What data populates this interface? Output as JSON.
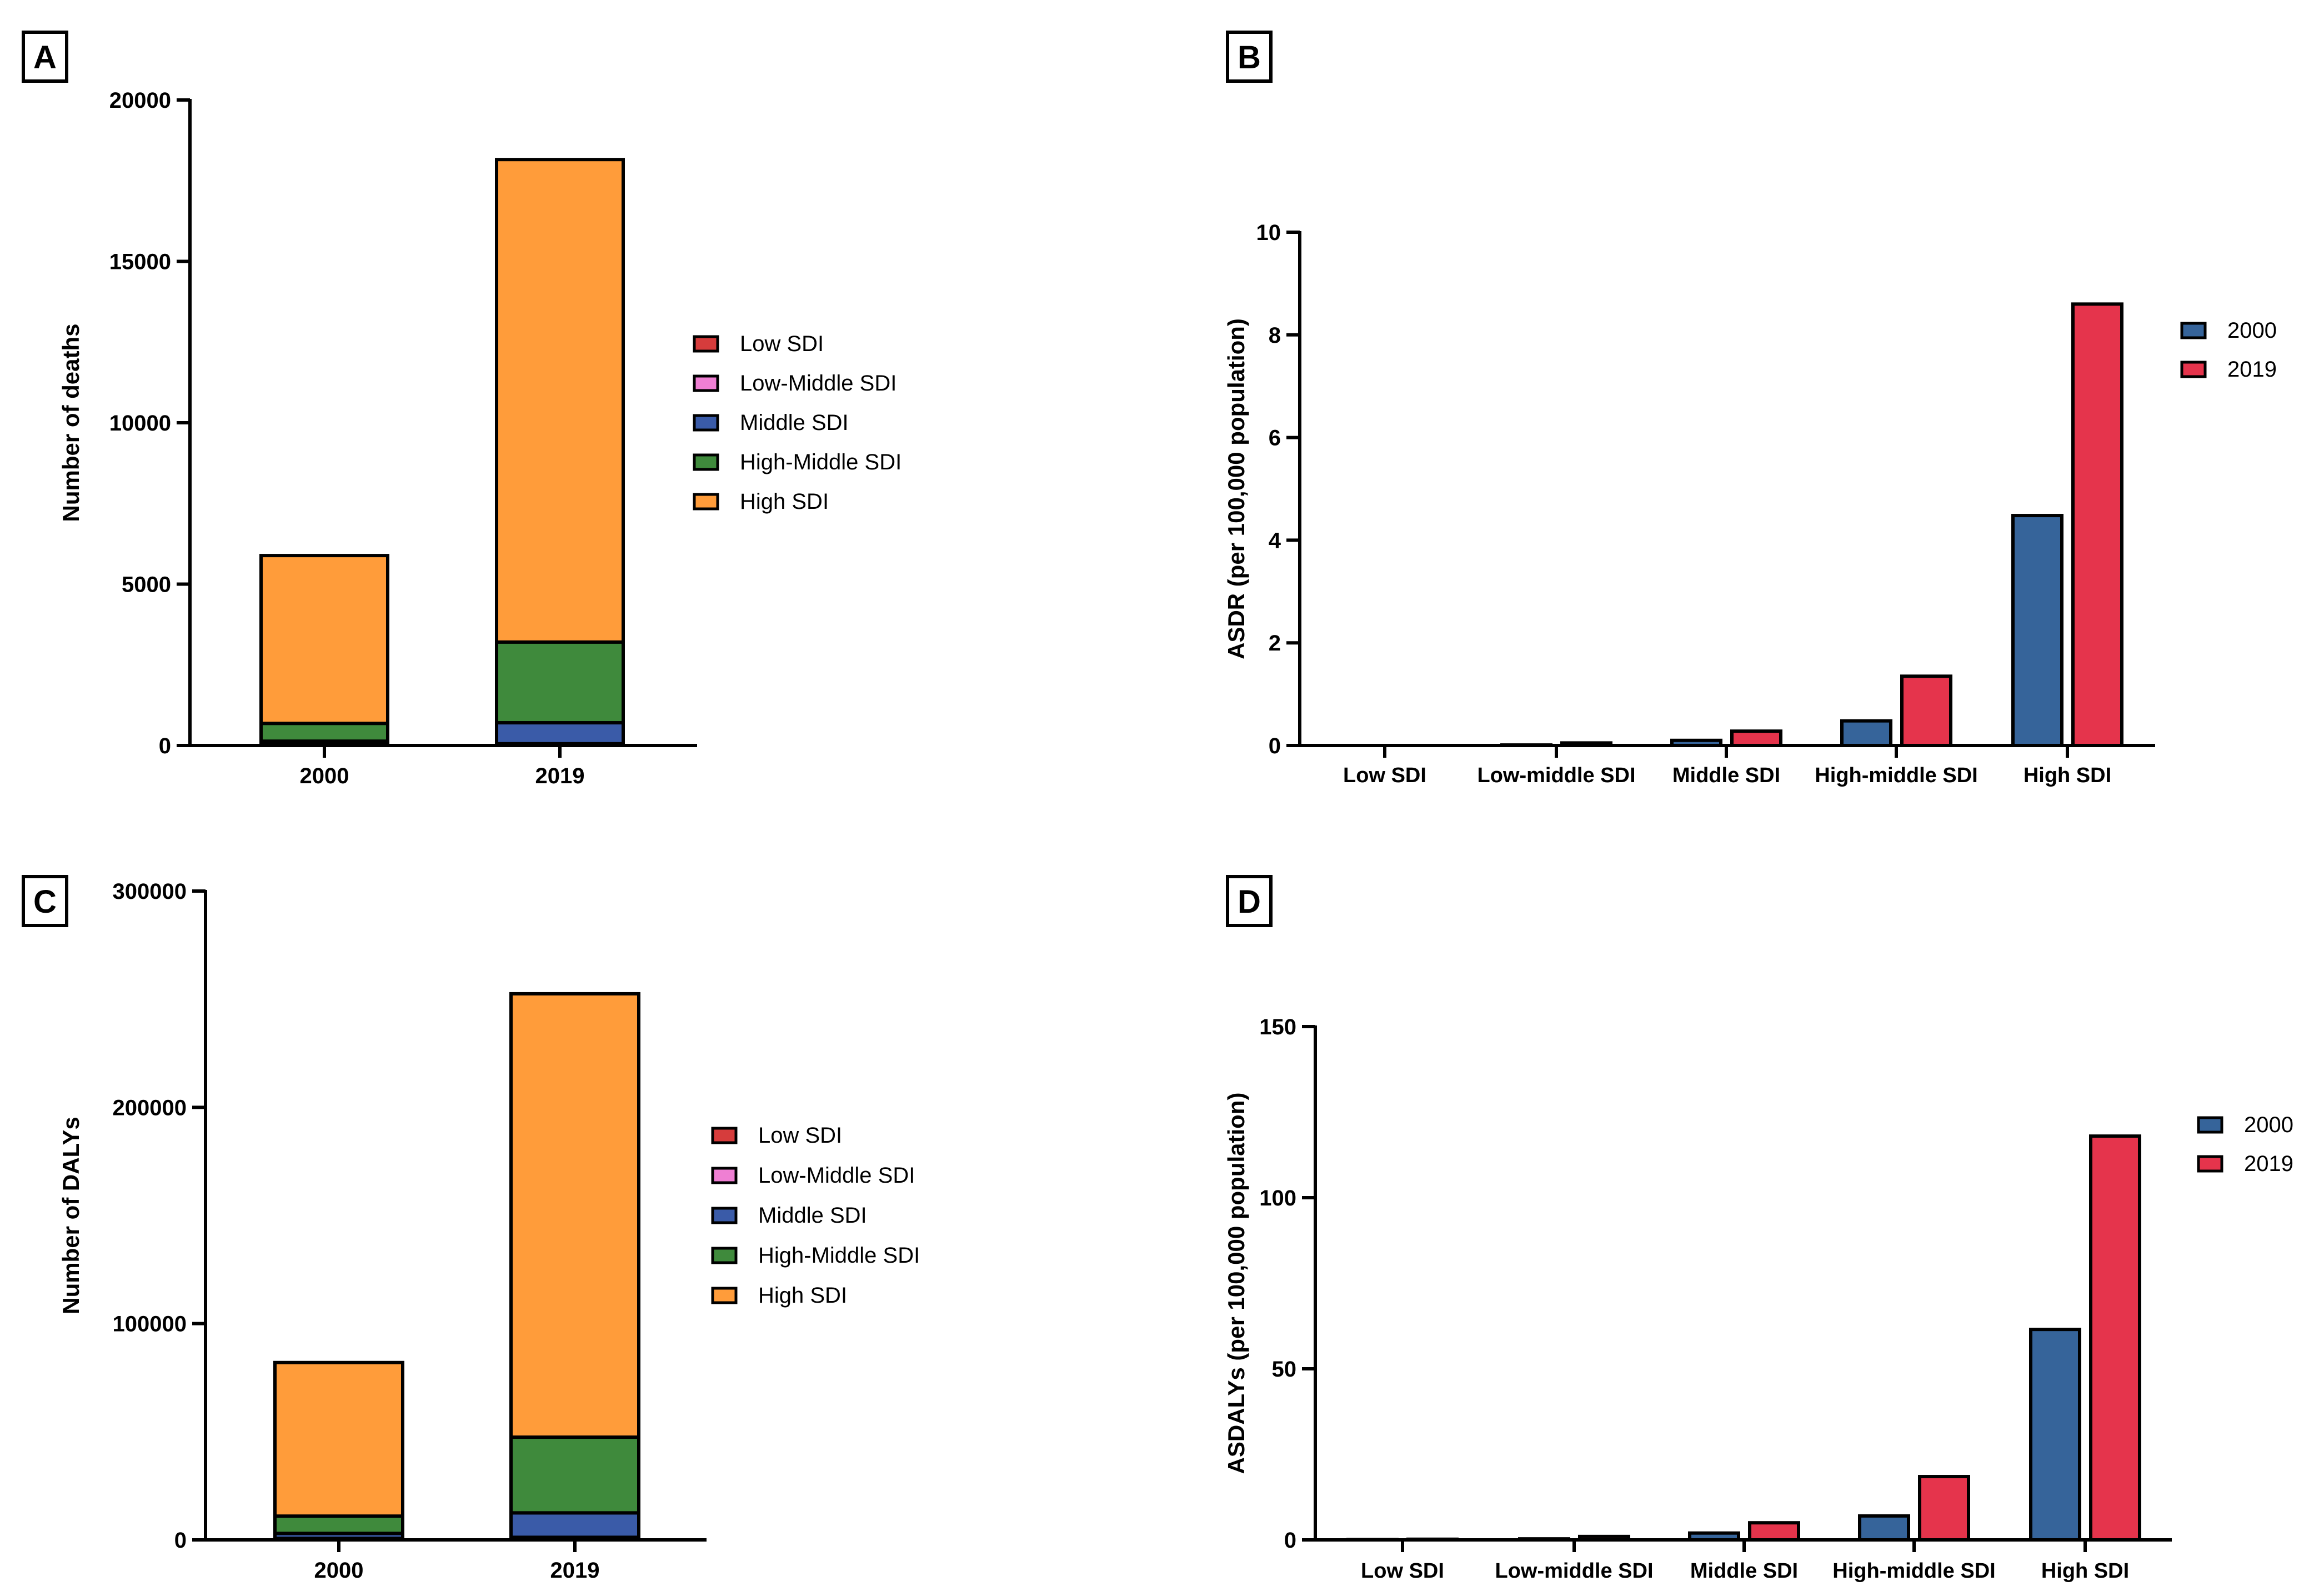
{
  "chart_data": [
    {
      "panel": "A",
      "type": "bar",
      "stacked": true,
      "categories": [
        "2000",
        "2019"
      ],
      "ylabel": "Number of deaths",
      "ylim": [
        0,
        20000
      ],
      "yticks": [
        "0",
        "5000",
        "10000",
        "15000",
        "20000"
      ],
      "legend_position": "right",
      "series": [
        {
          "name": "Low SDI",
          "color": "#d63c3c",
          "values": [
            10,
            15
          ]
        },
        {
          "name": "Low-Middle SDI",
          "color": "#ef7fd3",
          "values": [
            25,
            40
          ]
        },
        {
          "name": "Middle SDI",
          "color": "#3a5ba8",
          "values": [
            100,
            650
          ]
        },
        {
          "name": "High-Middle SDI",
          "color": "#3f8a3c",
          "values": [
            550,
            2500
          ]
        },
        {
          "name": "High SDI",
          "color": "#ff9c3a",
          "values": [
            5200,
            14950
          ]
        }
      ]
    },
    {
      "panel": "B",
      "type": "bar",
      "stacked": false,
      "categories": [
        "Low SDI",
        "Low-middle SDI",
        "Middle SDI",
        "High-middle SDI",
        "High SDI"
      ],
      "ylabel": "ASDR (per 100,000 population)",
      "ylim": [
        0,
        10
      ],
      "yticks": [
        "0",
        "2",
        "4",
        "6",
        "8",
        "10"
      ],
      "legend_position": "right",
      "series": [
        {
          "name": "2000",
          "color": "#36649a",
          "values": [
            0.0,
            0.01,
            0.1,
            0.48,
            4.48
          ]
        },
        {
          "name": "2019",
          "color": "#e5344c",
          "values": [
            0.0,
            0.05,
            0.28,
            1.35,
            8.6
          ]
        }
      ]
    },
    {
      "panel": "C",
      "type": "bar",
      "stacked": true,
      "categories": [
        "2000",
        "2019"
      ],
      "ylabel": "Number of DALYs",
      "ylim": [
        0,
        300000
      ],
      "yticks": [
        "0",
        "100000",
        "200000",
        "300000"
      ],
      "legend_position": "right",
      "series": [
        {
          "name": "Low SDI",
          "color": "#d63c3c",
          "values": [
            200,
            300
          ]
        },
        {
          "name": "Low-Middle SDI",
          "color": "#ef7fd3",
          "values": [
            500,
            900
          ]
        },
        {
          "name": "Middle SDI",
          "color": "#3a5ba8",
          "values": [
            2300,
            11300
          ]
        },
        {
          "name": "High-Middle SDI",
          "color": "#3f8a3c",
          "values": [
            8000,
            35000
          ]
        },
        {
          "name": "High SDI",
          "color": "#ff9c3a",
          "values": [
            71000,
            205000
          ]
        }
      ]
    },
    {
      "panel": "D",
      "type": "bar",
      "stacked": false,
      "categories": [
        "Low SDI",
        "Low-middle SDI",
        "Middle SDI",
        "High-middle SDI",
        "High SDI"
      ],
      "ylabel": "ASDALYs (per 100,000 population)",
      "ylim": [
        0,
        150
      ],
      "yticks": [
        "0",
        "50",
        "100",
        "150"
      ],
      "legend_position": "right",
      "series": [
        {
          "name": "2000",
          "color": "#36649a",
          "values": [
            0.1,
            0.3,
            2.0,
            7.0,
            61.5
          ]
        },
        {
          "name": "2019",
          "color": "#e5344c",
          "values": [
            0.2,
            1.0,
            5.0,
            18.5,
            118.0
          ]
        }
      ]
    }
  ]
}
